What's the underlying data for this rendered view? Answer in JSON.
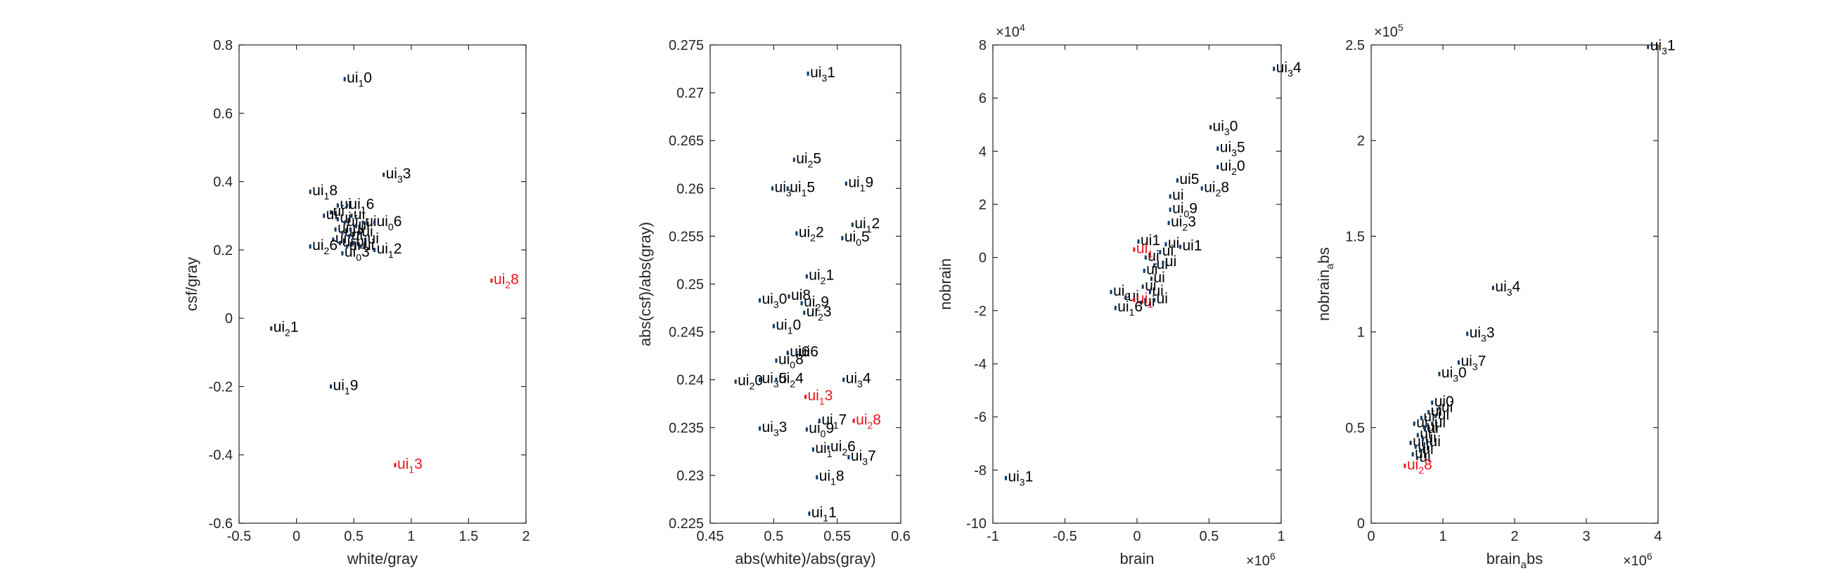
{
  "figure": {
    "background": "#ffffff",
    "axis_color": "#262626",
    "point_color": "#0b3a66",
    "label_color": "#000000",
    "highlight_color": "#e8141c"
  },
  "chart_data": [
    {
      "type": "scatter",
      "xlabel": "white/gray",
      "ylabel": "csf/gray",
      "xlim": [
        -0.5,
        2
      ],
      "ylim": [
        -0.6,
        0.8
      ],
      "xticks": [
        -0.5,
        0,
        0.5,
        1,
        1.5,
        2
      ],
      "xtick_labels": [
        "-0.5",
        "0",
        "0.5",
        "1",
        "1.5",
        "2"
      ],
      "yticks": [
        -0.6,
        -0.4,
        -0.2,
        0,
        0.2,
        0.4,
        0.6,
        0.8
      ],
      "ytick_labels": [
        "-0.6",
        "-0.4",
        "-0.2",
        "0",
        "0.2",
        "0.4",
        "0.6",
        "0.8"
      ],
      "x_exponent": "",
      "y_exponent": "",
      "grid": false,
      "box": true,
      "points": [
        {
          "x": 0.42,
          "y": 0.7,
          "base": "ui",
          "sub": "1",
          "tail": "0",
          "highlight": false
        },
        {
          "x": 0.76,
          "y": 0.42,
          "base": "ui",
          "sub": "3",
          "tail": "3",
          "highlight": false
        },
        {
          "x": 0.12,
          "y": 0.37,
          "base": "ui",
          "sub": "1",
          "tail": "8",
          "highlight": false
        },
        {
          "x": 0.44,
          "y": 0.33,
          "base": "ui",
          "sub": "1",
          "tail": "6",
          "highlight": false
        },
        {
          "x": 0.24,
          "y": 0.3,
          "base": "ui",
          "sub": "",
          "tail": "",
          "highlight": false
        },
        {
          "x": 0.68,
          "y": 0.28,
          "base": "ui",
          "sub": "0",
          "tail": "6",
          "highlight": false
        },
        {
          "x": 0.12,
          "y": 0.21,
          "base": "ui",
          "sub": "2",
          "tail": "6",
          "highlight": false
        },
        {
          "x": 0.4,
          "y": 0.19,
          "base": "ui",
          "sub": "0",
          "tail": "3",
          "highlight": false
        },
        {
          "x": 0.68,
          "y": 0.2,
          "base": "ui",
          "sub": "1",
          "tail": "2",
          "highlight": false
        },
        {
          "x": 1.7,
          "y": 0.11,
          "base": "ui",
          "sub": "2",
          "tail": "8",
          "highlight": true
        },
        {
          "x": -0.22,
          "y": -0.03,
          "base": "ui",
          "sub": "2",
          "tail": "1",
          "highlight": false
        },
        {
          "x": 0.3,
          "y": -0.2,
          "base": "ui",
          "sub": "1",
          "tail": "9",
          "highlight": false
        },
        {
          "x": 0.86,
          "y": -0.43,
          "base": "ui",
          "sub": "1",
          "tail": "3",
          "highlight": true
        }
      ],
      "cluster_points": [
        {
          "x": 0.3,
          "y": 0.31
        },
        {
          "x": 0.36,
          "y": 0.29
        },
        {
          "x": 0.42,
          "y": 0.28
        },
        {
          "x": 0.48,
          "y": 0.3
        },
        {
          "x": 0.52,
          "y": 0.27
        },
        {
          "x": 0.34,
          "y": 0.26
        },
        {
          "x": 0.4,
          "y": 0.25
        },
        {
          "x": 0.46,
          "y": 0.24
        },
        {
          "x": 0.55,
          "y": 0.25
        },
        {
          "x": 0.6,
          "y": 0.23
        },
        {
          "x": 0.32,
          "y": 0.23
        },
        {
          "x": 0.38,
          "y": 0.22
        },
        {
          "x": 0.44,
          "y": 0.21
        },
        {
          "x": 0.5,
          "y": 0.22
        },
        {
          "x": 0.56,
          "y": 0.21
        },
        {
          "x": 0.47,
          "y": 0.26
        },
        {
          "x": 0.58,
          "y": 0.28
        },
        {
          "x": 0.36,
          "y": 0.33
        }
      ]
    },
    {
      "type": "scatter",
      "xlabel": "abs(white)/abs(gray)",
      "ylabel": "abs(csf)/abs(gray)",
      "xlim": [
        0.45,
        0.6
      ],
      "ylim": [
        0.225,
        0.275
      ],
      "xticks": [
        0.45,
        0.5,
        0.55,
        0.6
      ],
      "xtick_labels": [
        "0.45",
        "0.5",
        "0.55",
        "0.6"
      ],
      "yticks": [
        0.225,
        0.23,
        0.235,
        0.24,
        0.245,
        0.25,
        0.255,
        0.26,
        0.265,
        0.27,
        0.275
      ],
      "ytick_labels": [
        "0.225",
        "0.23",
        "0.235",
        "0.24",
        "0.245",
        "0.25",
        "0.255",
        "0.26",
        "0.265",
        "0.27",
        "0.275"
      ],
      "x_exponent": "",
      "y_exponent": "",
      "grid": false,
      "box": true,
      "points": [
        {
          "x": 0.527,
          "y": 0.272,
          "base": "ui",
          "sub": "3",
          "tail": "1",
          "highlight": false
        },
        {
          "x": 0.516,
          "y": 0.263,
          "base": "ui",
          "sub": "2",
          "tail": "5",
          "highlight": false
        },
        {
          "x": 0.499,
          "y": 0.26,
          "base": "ui",
          "sub": "3",
          "tail": "",
          "highlight": false
        },
        {
          "x": 0.511,
          "y": 0.26,
          "base": "ui",
          "sub": "1",
          "tail": "5",
          "highlight": false
        },
        {
          "x": 0.557,
          "y": 0.2605,
          "base": "ui",
          "sub": "1",
          "tail": "9",
          "highlight": false
        },
        {
          "x": 0.562,
          "y": 0.2562,
          "base": "ui",
          "sub": "1",
          "tail": "2",
          "highlight": false
        },
        {
          "x": 0.518,
          "y": 0.2553,
          "base": "ui",
          "sub": "2",
          "tail": "2",
          "highlight": false
        },
        {
          "x": 0.554,
          "y": 0.2548,
          "base": "ui",
          "sub": "0",
          "tail": "5",
          "highlight": false
        },
        {
          "x": 0.526,
          "y": 0.2508,
          "base": "ui",
          "sub": "2",
          "tail": "1",
          "highlight": false
        },
        {
          "x": 0.489,
          "y": 0.2483,
          "base": "ui",
          "sub": "3",
          "tail": "0",
          "highlight": false
        },
        {
          "x": 0.512,
          "y": 0.2487,
          "base": "ui",
          "sub": "",
          "tail": "8",
          "highlight": false
        },
        {
          "x": 0.522,
          "y": 0.248,
          "base": "ui",
          "sub": "2",
          "tail": "9",
          "highlight": false
        },
        {
          "x": 0.524,
          "y": 0.247,
          "base": "ui",
          "sub": "2",
          "tail": "3",
          "highlight": false
        },
        {
          "x": 0.5,
          "y": 0.2456,
          "base": "ui",
          "sub": "1",
          "tail": "0",
          "highlight": false
        },
        {
          "x": 0.511,
          "y": 0.2428,
          "base": "ui",
          "sub": "",
          "tail": "6",
          "highlight": false
        },
        {
          "x": 0.518,
          "y": 0.2428,
          "base": "ui",
          "sub": "",
          "tail": "6",
          "highlight": false
        },
        {
          "x": 0.502,
          "y": 0.242,
          "base": "ui",
          "sub": "0",
          "tail": "8",
          "highlight": false
        },
        {
          "x": 0.47,
          "y": 0.2398,
          "base": "ui",
          "sub": "2",
          "tail": "0",
          "highlight": false
        },
        {
          "x": 0.489,
          "y": 0.24,
          "base": "ui",
          "sub": "3",
          "tail": "5",
          "highlight": false
        },
        {
          "x": 0.502,
          "y": 0.24,
          "base": "ui",
          "sub": "2",
          "tail": "4",
          "highlight": false
        },
        {
          "x": 0.555,
          "y": 0.24,
          "base": "ui",
          "sub": "3",
          "tail": "4",
          "highlight": false
        },
        {
          "x": 0.525,
          "y": 0.2382,
          "base": "ui",
          "sub": "1",
          "tail": "3",
          "highlight": true
        },
        {
          "x": 0.563,
          "y": 0.2357,
          "base": "ui",
          "sub": "2",
          "tail": "8",
          "highlight": true
        },
        {
          "x": 0.536,
          "y": 0.2357,
          "base": "ui",
          "sub": "1",
          "tail": "7",
          "highlight": false
        },
        {
          "x": 0.489,
          "y": 0.2349,
          "base": "ui",
          "sub": "3",
          "tail": "3",
          "highlight": false
        },
        {
          "x": 0.526,
          "y": 0.2348,
          "base": "ui",
          "sub": "0",
          "tail": "9",
          "highlight": false
        },
        {
          "x": 0.531,
          "y": 0.2327,
          "base": "ui",
          "sub": "1",
          "tail": "",
          "highlight": false
        },
        {
          "x": 0.543,
          "y": 0.2329,
          "base": "ui",
          "sub": "2",
          "tail": "6",
          "highlight": false
        },
        {
          "x": 0.559,
          "y": 0.2319,
          "base": "ui",
          "sub": "3",
          "tail": "7",
          "highlight": false
        },
        {
          "x": 0.534,
          "y": 0.2298,
          "base": "ui",
          "sub": "1",
          "tail": "8",
          "highlight": false
        },
        {
          "x": 0.528,
          "y": 0.226,
          "base": "ui",
          "sub": "1",
          "tail": "1",
          "highlight": false
        }
      ],
      "cluster_points": []
    },
    {
      "type": "scatter",
      "xlabel": "brain",
      "ylabel": "nobrain",
      "xlim": [
        -1,
        1
      ],
      "ylim": [
        -10,
        8
      ],
      "xticks": [
        -1,
        -0.5,
        0,
        0.5,
        1
      ],
      "xtick_labels": [
        "-1",
        "-0.5",
        "0",
        "0.5",
        "1"
      ],
      "yticks": [
        -10,
        -8,
        -6,
        -4,
        -2,
        0,
        2,
        4,
        6,
        8
      ],
      "ytick_labels": [
        "-10",
        "-8",
        "-6",
        "-4",
        "-2",
        "0",
        "2",
        "4",
        "6",
        "8"
      ],
      "x_exponent": "6",
      "y_exponent": "4",
      "exponent_base": "×10",
      "grid": false,
      "box": true,
      "points": [
        {
          "x": 0.95,
          "y": 7.1,
          "base": "ui",
          "sub": "3",
          "tail": "4",
          "highlight": false
        },
        {
          "x": 0.51,
          "y": 4.9,
          "base": "ui",
          "sub": "3",
          "tail": "0",
          "highlight": false
        },
        {
          "x": 0.56,
          "y": 4.1,
          "base": "ui",
          "sub": "3",
          "tail": "5",
          "highlight": false
        },
        {
          "x": 0.56,
          "y": 3.4,
          "base": "ui",
          "sub": "2",
          "tail": "0",
          "highlight": false
        },
        {
          "x": 0.28,
          "y": 2.9,
          "base": "ui",
          "sub": "",
          "tail": "5",
          "highlight": false
        },
        {
          "x": 0.45,
          "y": 2.6,
          "base": "ui",
          "sub": "2",
          "tail": "8",
          "highlight": false
        },
        {
          "x": 0.23,
          "y": 2.3,
          "base": "ui",
          "sub": "",
          "tail": "",
          "highlight": false
        },
        {
          "x": 0.23,
          "y": 1.8,
          "base": "ui",
          "sub": "0",
          "tail": "9",
          "highlight": false
        },
        {
          "x": 0.22,
          "y": 1.3,
          "base": "ui",
          "sub": "2",
          "tail": "3",
          "highlight": false
        },
        {
          "x": 0.01,
          "y": 0.6,
          "base": "ui",
          "sub": "",
          "tail": "1",
          "highlight": false
        },
        {
          "x": 0.3,
          "y": 0.4,
          "base": "ui",
          "sub": "",
          "tail": "1",
          "highlight": false
        },
        {
          "x": -0.02,
          "y": 0.3,
          "base": "ui",
          "sub": "1",
          "tail": "",
          "highlight": true
        },
        {
          "x": -0.18,
          "y": -1.3,
          "base": "ui",
          "sub": "2",
          "tail": "",
          "highlight": false
        },
        {
          "x": -0.02,
          "y": -1.6,
          "base": "ui",
          "sub": "1",
          "tail": "",
          "highlight": true
        },
        {
          "x": -0.15,
          "y": -1.9,
          "base": "ui",
          "sub": "1",
          "tail": "6",
          "highlight": false
        },
        {
          "x": -0.91,
          "y": -8.3,
          "base": "ui",
          "sub": "3",
          "tail": "1",
          "highlight": false
        }
      ],
      "cluster_points": [
        {
          "x": 0.06,
          "y": 0.0
        },
        {
          "x": 0.12,
          "y": -0.3
        },
        {
          "x": 0.05,
          "y": -0.5
        },
        {
          "x": 0.1,
          "y": -0.8
        },
        {
          "x": 0.04,
          "y": -1.1
        },
        {
          "x": 0.09,
          "y": -1.3
        },
        {
          "x": 0.16,
          "y": 0.2
        },
        {
          "x": 0.2,
          "y": 0.5
        },
        {
          "x": 0.03,
          "y": -1.7
        },
        {
          "x": -0.08,
          "y": -1.5
        },
        {
          "x": 0.12,
          "y": -1.6
        },
        {
          "x": 0.18,
          "y": -0.2
        }
      ]
    },
    {
      "type": "scatter",
      "xlabel": "brain_a bs",
      "ylabel": "nobrain_a bs",
      "xlim": [
        0,
        4
      ],
      "ylim": [
        0,
        2.5
      ],
      "xticks": [
        0,
        1,
        2,
        3,
        4
      ],
      "xtick_labels": [
        "0",
        "1",
        "2",
        "3",
        "4"
      ],
      "yticks": [
        0,
        0.5,
        1,
        1.5,
        2,
        2.5
      ],
      "ytick_labels": [
        "0",
        "0.5",
        "1",
        "1.5",
        "2",
        "2.5"
      ],
      "x_exponent": "6",
      "y_exponent": "5",
      "exponent_base": "×10",
      "grid": false,
      "box": true,
      "points": [
        {
          "x": 3.86,
          "y": 2.49,
          "base": "ui",
          "sub": "3",
          "tail": "1",
          "highlight": false
        },
        {
          "x": 1.7,
          "y": 1.23,
          "base": "ui",
          "sub": "3",
          "tail": "4",
          "highlight": false
        },
        {
          "x": 1.34,
          "y": 0.99,
          "base": "ui",
          "sub": "3",
          "tail": "3",
          "highlight": false
        },
        {
          "x": 1.22,
          "y": 0.84,
          "base": "ui",
          "sub": "3",
          "tail": "7",
          "highlight": false
        },
        {
          "x": 0.95,
          "y": 0.78,
          "base": "ui",
          "sub": "3",
          "tail": "0",
          "highlight": false
        },
        {
          "x": 0.85,
          "y": 0.63,
          "base": "ui",
          "sub": "",
          "tail": "0",
          "highlight": false
        },
        {
          "x": 0.47,
          "y": 0.3,
          "base": "ui",
          "sub": "2",
          "tail": "8",
          "highlight": true
        }
      ],
      "cluster_points": [
        {
          "x": 0.6,
          "y": 0.52
        },
        {
          "x": 0.7,
          "y": 0.55
        },
        {
          "x": 0.8,
          "y": 0.58
        },
        {
          "x": 0.65,
          "y": 0.46
        },
        {
          "x": 0.75,
          "y": 0.49
        },
        {
          "x": 0.85,
          "y": 0.52
        },
        {
          "x": 0.55,
          "y": 0.42
        },
        {
          "x": 0.62,
          "y": 0.4
        },
        {
          "x": 0.72,
          "y": 0.44
        },
        {
          "x": 0.9,
          "y": 0.56
        },
        {
          "x": 0.58,
          "y": 0.36
        },
        {
          "x": 0.68,
          "y": 0.38
        },
        {
          "x": 0.78,
          "y": 0.42
        },
        {
          "x": 0.95,
          "y": 0.6
        },
        {
          "x": 0.64,
          "y": 0.34
        },
        {
          "x": 0.74,
          "y": 0.5
        }
      ]
    }
  ]
}
